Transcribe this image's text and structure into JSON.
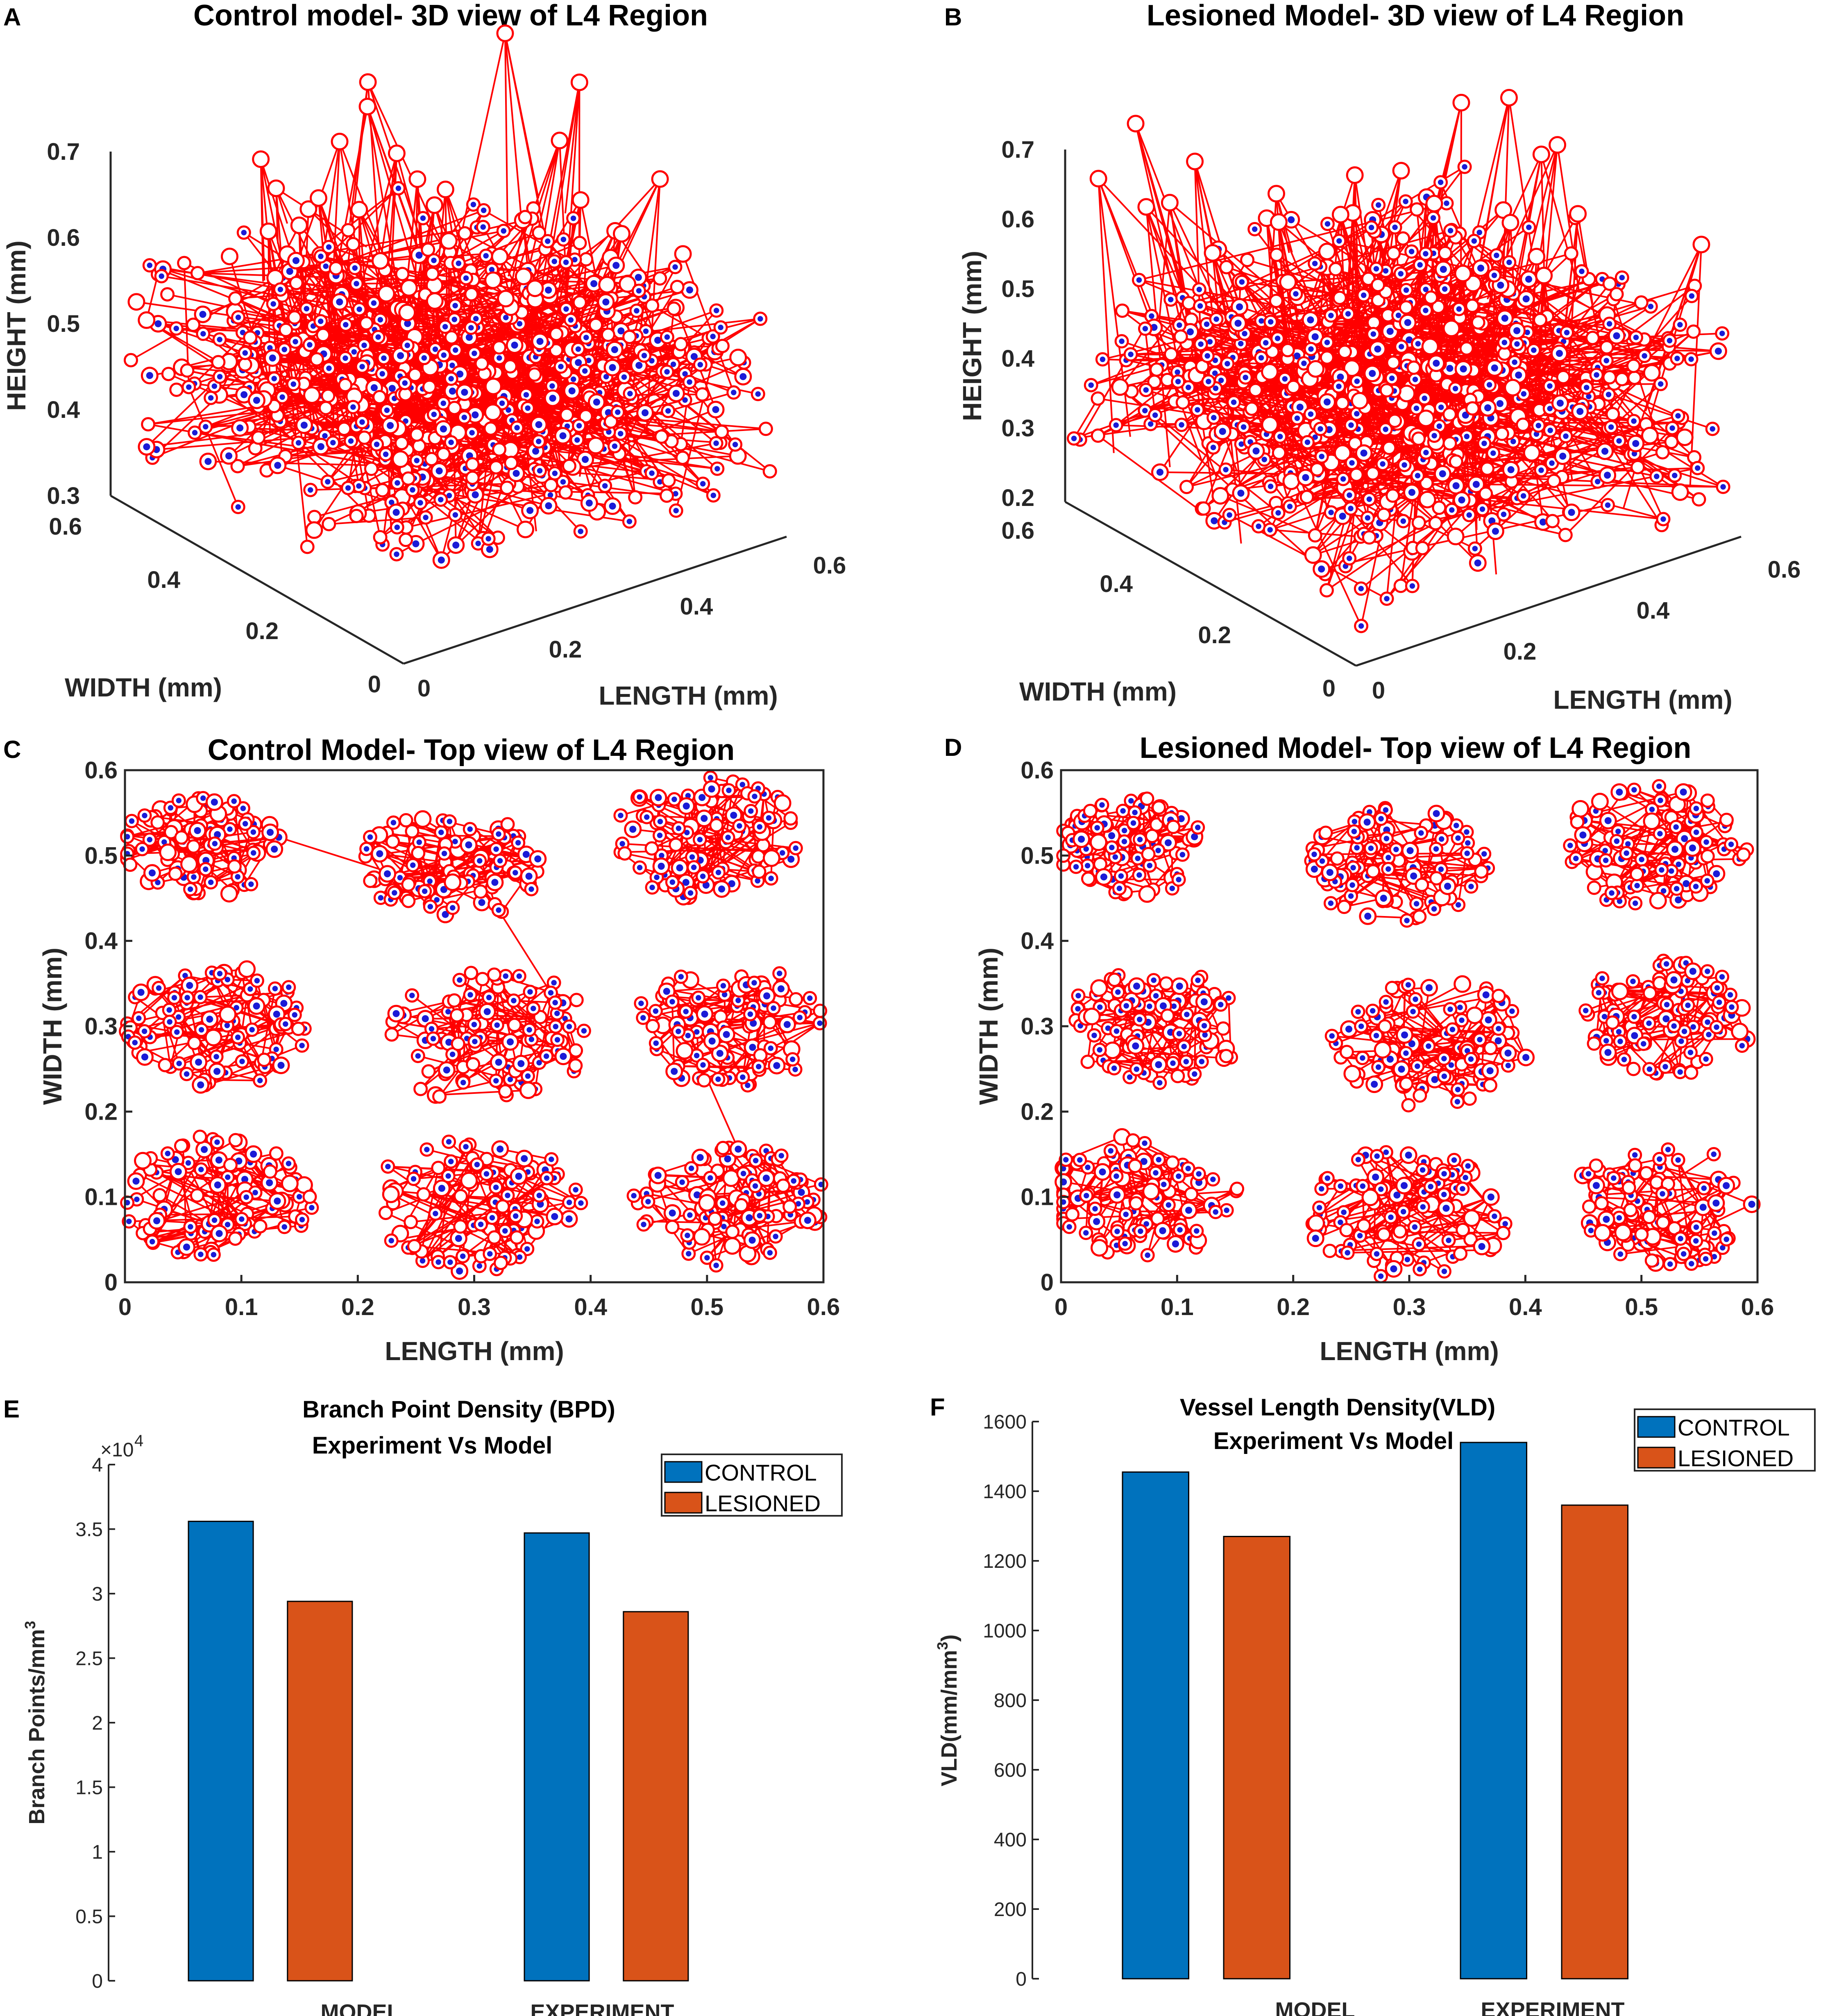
{
  "colors": {
    "vessel": "#ff0000",
    "node_fill": "#ffffff",
    "node_core": "#1a1ad6",
    "control": "#0072bd",
    "lesioned": "#d95319",
    "axis": "#262626"
  },
  "panels": {
    "A": {
      "letter": "A",
      "title": "Control model- 3D view of L4 Region"
    },
    "B": {
      "letter": "B",
      "title": "Lesioned Model- 3D view of L4 Region"
    },
    "C": {
      "letter": "C",
      "title": "Control Model- Top view of L4 Region"
    },
    "D": {
      "letter": "D",
      "title": "Lesioned Model- Top view of L4 Region"
    },
    "E": {
      "letter": "E",
      "title_line1": "Branch Point Density (BPD)",
      "title_line2": "Experiment Vs Model"
    },
    "F": {
      "letter": "F",
      "title_line1": "Vessel Length Density(VLD)",
      "title_line2": "Experiment Vs Model"
    }
  },
  "chart_data": [
    {
      "id": "A",
      "type": "scatter",
      "subtype": "3d-network",
      "title": "Control model- 3D view of L4 Region",
      "xlabel": "LENGTH (mm)",
      "ylabel": "WIDTH (mm)",
      "zlabel": "HEIGHT (mm)",
      "xlim": [
        0,
        0.6
      ],
      "ylim": [
        0,
        0.6
      ],
      "zlim": [
        0.3,
        0.7
      ],
      "xticks": [
        "0",
        "0.2",
        "0.4",
        "0.6"
      ],
      "yticks": [
        "0",
        "0.2",
        "0.4",
        "0.6"
      ],
      "zticks": [
        "0.3",
        "0.4",
        "0.5",
        "0.6",
        "0.7"
      ]
    },
    {
      "id": "B",
      "type": "scatter",
      "subtype": "3d-network",
      "title": "Lesioned Model- 3D view of L4 Region",
      "xlabel": "LENGTH (mm)",
      "ylabel": "WIDTH (mm)",
      "zlabel": "HEIGHT (mm)",
      "xlim": [
        0,
        0.6
      ],
      "ylim": [
        0,
        0.6
      ],
      "zlim": [
        0.2,
        0.7
      ],
      "xticks": [
        "0",
        "0.2",
        "0.4",
        "0.6"
      ],
      "yticks": [
        "0",
        "0.2",
        "0.4",
        "0.6"
      ],
      "zticks": [
        "0.2",
        "0.3",
        "0.4",
        "0.5",
        "0.6",
        "0.7"
      ]
    },
    {
      "id": "C",
      "type": "scatter",
      "subtype": "network-top-view",
      "title": "Control Model- Top view of L4 Region",
      "xlabel": "LENGTH (mm)",
      "ylabel": "WIDTH (mm)",
      "xlim": [
        0,
        0.6
      ],
      "ylim": [
        0,
        0.6
      ],
      "xticks": [
        "0",
        "0.1",
        "0.2",
        "0.3",
        "0.4",
        "0.5",
        "0.6"
      ],
      "yticks": [
        "0",
        "0.1",
        "0.2",
        "0.3",
        "0.4",
        "0.5",
        "0.6"
      ],
      "clusters": [
        {
          "cx": 0.06,
          "cy": 0.51,
          "r": 0.07
        },
        {
          "cx": 0.28,
          "cy": 0.49,
          "r": 0.075
        },
        {
          "cx": 0.5,
          "cy": 0.52,
          "r": 0.08
        },
        {
          "cx": 0.08,
          "cy": 0.3,
          "r": 0.08
        },
        {
          "cx": 0.31,
          "cy": 0.29,
          "r": 0.09
        },
        {
          "cx": 0.52,
          "cy": 0.3,
          "r": 0.08
        },
        {
          "cx": 0.08,
          "cy": 0.1,
          "r": 0.08
        },
        {
          "cx": 0.3,
          "cy": 0.09,
          "r": 0.09
        },
        {
          "cx": 0.52,
          "cy": 0.09,
          "r": 0.08
        }
      ]
    },
    {
      "id": "D",
      "type": "scatter",
      "subtype": "network-top-view",
      "title": "Lesioned Model- Top view of L4 Region",
      "xlabel": "LENGTH (mm)",
      "ylabel": "WIDTH (mm)",
      "xlim": [
        0,
        0.6
      ],
      "ylim": [
        0,
        0.6
      ],
      "xticks": [
        "0",
        "0.1",
        "0.2",
        "0.3",
        "0.4",
        "0.5",
        "0.6"
      ],
      "yticks": [
        "0",
        "0.1",
        "0.2",
        "0.3",
        "0.4",
        "0.5",
        "0.6"
      ],
      "clusters": [
        {
          "cx": 0.06,
          "cy": 0.51,
          "r": 0.065
        },
        {
          "cx": 0.29,
          "cy": 0.49,
          "r": 0.075
        },
        {
          "cx": 0.51,
          "cy": 0.51,
          "r": 0.08
        },
        {
          "cx": 0.08,
          "cy": 0.3,
          "r": 0.075
        },
        {
          "cx": 0.32,
          "cy": 0.28,
          "r": 0.085
        },
        {
          "cx": 0.52,
          "cy": 0.31,
          "r": 0.075
        },
        {
          "cx": 0.07,
          "cy": 0.1,
          "r": 0.08
        },
        {
          "cx": 0.3,
          "cy": 0.08,
          "r": 0.085
        },
        {
          "cx": 0.52,
          "cy": 0.09,
          "r": 0.08
        }
      ]
    },
    {
      "id": "E",
      "type": "bar",
      "title": "Branch Point Density (BPD) Experiment Vs Model",
      "xlabel": "",
      "ylabel": "Branch Points/mm",
      "ylabel_superscript": "3",
      "exponent_base": "×10",
      "exponent_power": "4",
      "ylim": [
        0,
        4
      ],
      "yticks": [
        "0",
        "0.5",
        "1",
        "1.5",
        "2",
        "2.5",
        "3",
        "3.5",
        "4"
      ],
      "categories": [
        "MODEL",
        "EXPERIMENT"
      ],
      "series": [
        {
          "name": "CONTROL",
          "values": [
            3.56,
            3.47
          ]
        },
        {
          "name": "LESIONED",
          "values": [
            2.94,
            2.86
          ]
        }
      ],
      "legend": "top-right"
    },
    {
      "id": "F",
      "type": "bar",
      "title": "Vessel Length Density(VLD) Experiment Vs Model",
      "xlabel": "",
      "ylabel": "VLD(mm/mm",
      "ylabel_superscript": "3",
      "ylabel_close": ")",
      "ylim": [
        0,
        1600
      ],
      "yticks": [
        "0",
        "200",
        "400",
        "600",
        "800",
        "1000",
        "1200",
        "1400",
        "1600"
      ],
      "categories": [
        "MODEL",
        "EXPERIMENT"
      ],
      "series": [
        {
          "name": "CONTROL",
          "values": [
            1455,
            1540
          ]
        },
        {
          "name": "LESIONED",
          "values": [
            1270,
            1360
          ]
        }
      ],
      "legend": "top-right"
    }
  ]
}
